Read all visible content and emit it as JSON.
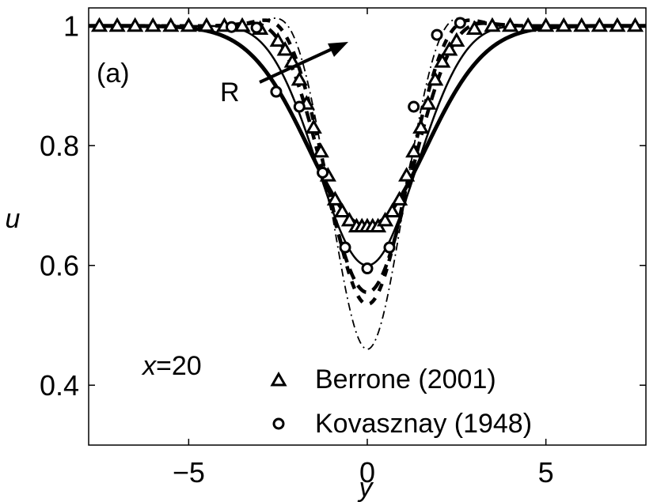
{
  "chart_data": {
    "type": "line",
    "title": "",
    "xlabel": "y",
    "ylabel": "u",
    "xlim": [
      -7.8,
      7.8
    ],
    "ylim": [
      0.3,
      1.03
    ],
    "x_ticks": [
      -5,
      0,
      5
    ],
    "x_tick_labels": [
      "−5",
      "0",
      "5"
    ],
    "y_ticks": [
      0.4,
      0.6,
      0.8,
      1.0
    ],
    "y_tick_labels": [
      "0.4",
      "0.6",
      "0.8",
      "1"
    ],
    "grid": false,
    "legend_position": "bottom-center",
    "annotations": {
      "panel_label": "(a)",
      "arrow_label": "R",
      "station_var": "x",
      "station_value": "=20"
    },
    "series": [
      {
        "style": "thick-solid",
        "curve": {
          "depth": 0.335,
          "width": 1.65,
          "overshoot": 0.0
        }
      },
      {
        "style": "solid",
        "curve": {
          "depth": 0.4,
          "width": 1.35,
          "overshoot": 0.008
        }
      },
      {
        "style": "thick-dashed",
        "curve": {
          "depth": 0.445,
          "width": 1.15,
          "overshoot": 0.02
        }
      },
      {
        "style": "thick-dashed-2",
        "curve": {
          "depth": 0.465,
          "width": 1.05,
          "overshoot": 0.028
        }
      },
      {
        "style": "dash-dot",
        "curve": {
          "depth": 0.54,
          "width": 0.95,
          "overshoot": 0.035
        }
      },
      {
        "name": "Berrone (2001)",
        "marker": "triangle",
        "x": [
          -7.5,
          -7.0,
          -6.5,
          -6.0,
          -5.5,
          -5.0,
          -4.5,
          -4.0,
          -3.5,
          -3.0,
          -2.5,
          -2.3,
          -2.1,
          -1.9,
          -1.7,
          -1.5,
          -1.3,
          -1.1,
          -0.9,
          -0.7,
          -0.5,
          -0.3,
          -0.15,
          0.0,
          0.15,
          0.3,
          0.5,
          0.7,
          0.9,
          1.1,
          1.3,
          1.5,
          1.7,
          1.9,
          2.1,
          2.3,
          2.5,
          3.0,
          3.5,
          4.0,
          4.5,
          5.0,
          5.5,
          6.0,
          6.5,
          7.0,
          7.5
        ],
        "y": [
          1.0,
          1.0,
          1.0,
          1.0,
          1.0,
          1.0,
          1.0,
          1.0,
          1.0,
          0.995,
          0.975,
          0.96,
          0.94,
          0.91,
          0.87,
          0.83,
          0.79,
          0.75,
          0.71,
          0.69,
          0.675,
          0.665,
          0.665,
          0.665,
          0.665,
          0.665,
          0.675,
          0.69,
          0.71,
          0.75,
          0.79,
          0.83,
          0.87,
          0.91,
          0.94,
          0.96,
          0.975,
          0.995,
          1.0,
          1.0,
          1.0,
          1.0,
          1.0,
          1.0,
          1.0,
          1.0,
          1.0
        ]
      },
      {
        "name": "Kovasznay (1948)",
        "marker": "circle",
        "x": [
          -3.8,
          -3.1,
          -2.55,
          -1.9,
          -1.25,
          -0.62,
          0.0,
          0.62,
          1.3,
          1.95,
          2.6
        ],
        "y": [
          0.998,
          0.997,
          0.89,
          0.865,
          0.755,
          0.63,
          0.595,
          0.63,
          0.865,
          0.985,
          1.005
        ]
      }
    ]
  }
}
